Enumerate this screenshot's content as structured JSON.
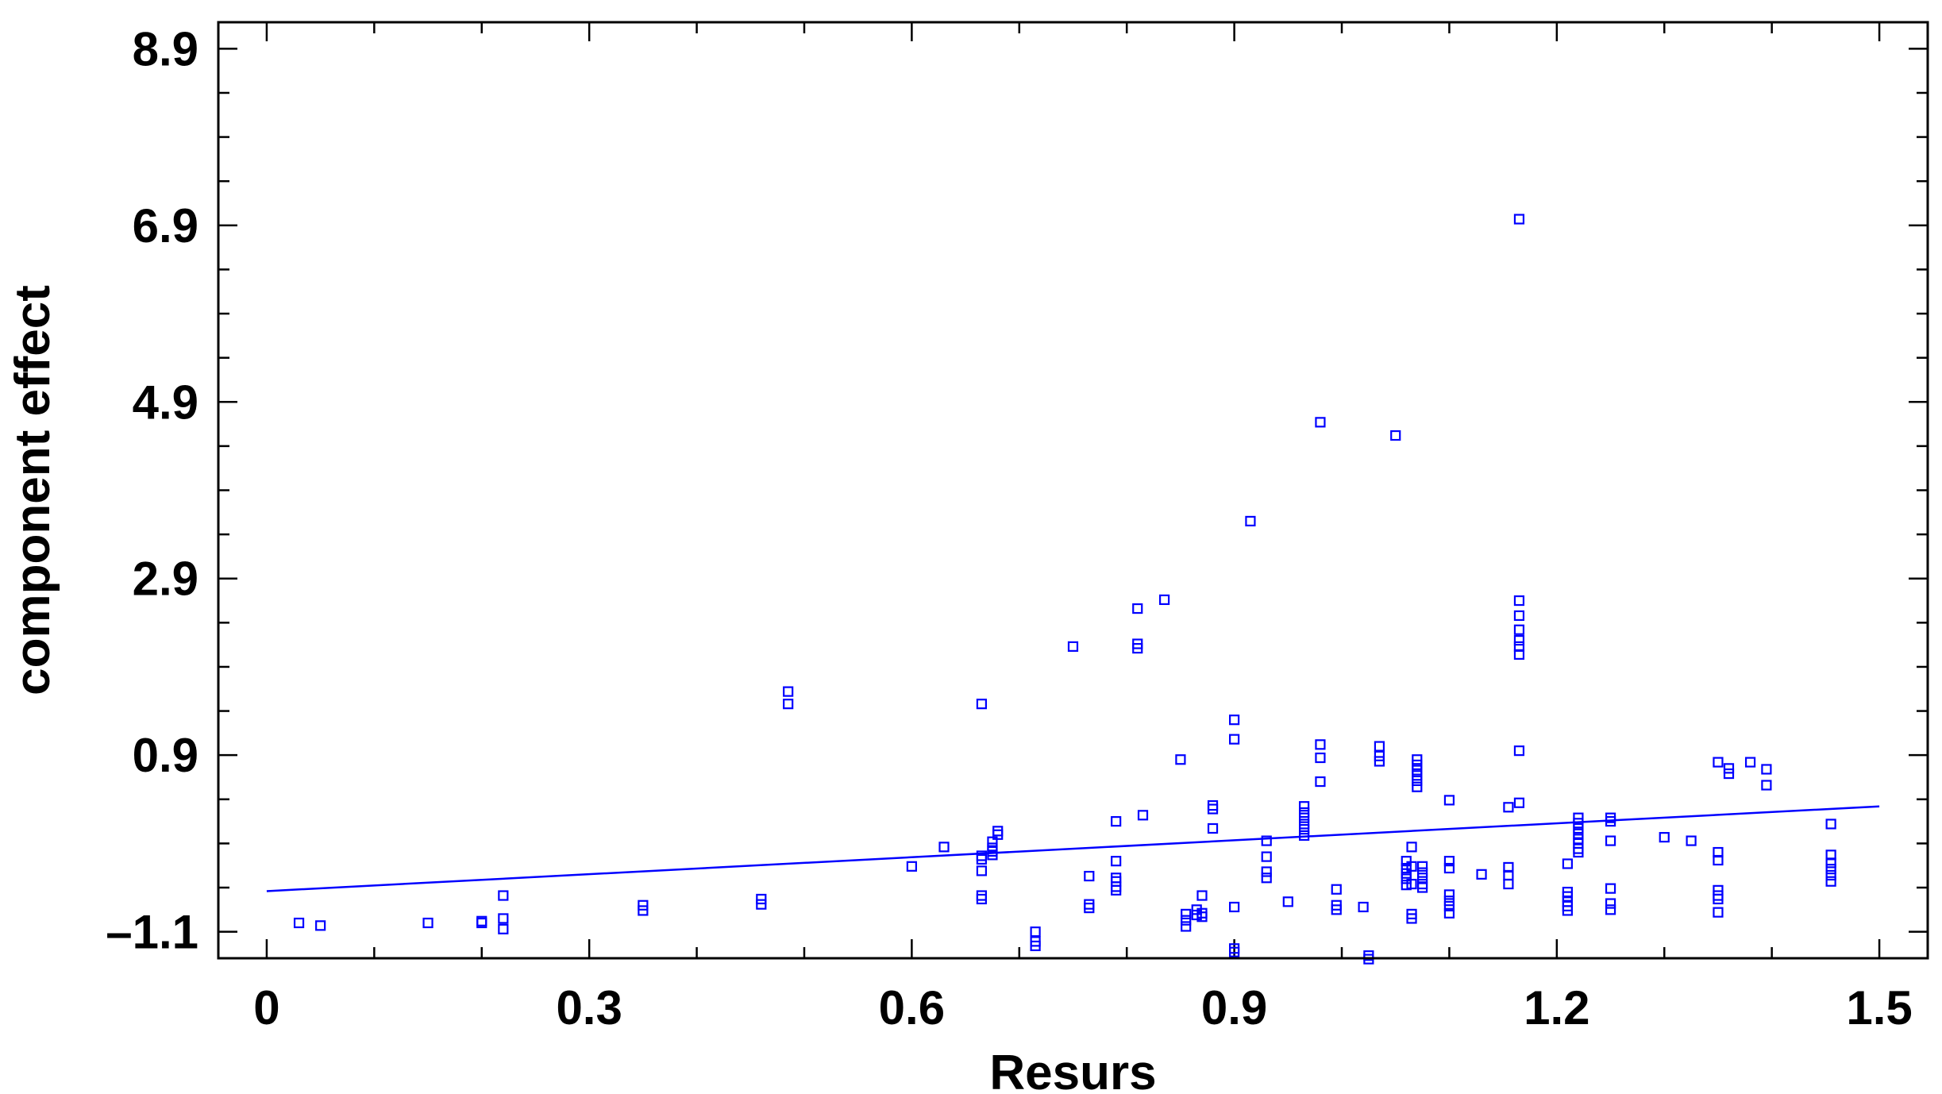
{
  "chart_data": {
    "type": "scatter",
    "title": "",
    "xlabel": "Resurs",
    "ylabel": "component effect",
    "xlim": [
      -0.045,
      1.545
    ],
    "ylim": [
      -1.4,
      9.2
    ],
    "x_ticks": [
      0,
      0.3,
      0.6,
      0.9,
      1.2,
      1.5
    ],
    "x_tick_labels": [
      "0",
      "0.3",
      "0.6",
      "0.9",
      "1.2",
      "1.5"
    ],
    "y_ticks": [
      -1.1,
      0.9,
      2.9,
      4.9,
      6.9,
      8.9
    ],
    "y_tick_labels": [
      "–1.1",
      "0.9",
      "2.9",
      "4.9",
      "6.9",
      "8.9"
    ],
    "x_minor_step": 0.1,
    "y_minor_step": 0.5,
    "grid": false,
    "legend": "none",
    "colors": {
      "points": "#0000ff",
      "fit_line": "#0000ff",
      "axes": "#000000"
    },
    "fit_line": {
      "x": [
        0,
        1.5
      ],
      "y": [
        -0.64,
        0.32
      ]
    },
    "points": [
      {
        "x": 0.03,
        "y": -1.0
      },
      {
        "x": 0.05,
        "y": -1.03
      },
      {
        "x": 0.15,
        "y": -1.0
      },
      {
        "x": 0.2,
        "y": -0.98
      },
      {
        "x": 0.2,
        "y": -1.0
      },
      {
        "x": 0.22,
        "y": -0.69
      },
      {
        "x": 0.22,
        "y": -0.95
      },
      {
        "x": 0.22,
        "y": -1.07
      },
      {
        "x": 0.35,
        "y": -0.8
      },
      {
        "x": 0.35,
        "y": -0.86
      },
      {
        "x": 0.46,
        "y": -0.73
      },
      {
        "x": 0.46,
        "y": -0.79
      },
      {
        "x": 0.485,
        "y": 1.62
      },
      {
        "x": 0.485,
        "y": 1.48
      },
      {
        "x": 0.6,
        "y": -0.36
      },
      {
        "x": 0.63,
        "y": -0.14
      },
      {
        "x": 0.665,
        "y": 1.48
      },
      {
        "x": 0.665,
        "y": -0.24
      },
      {
        "x": 0.665,
        "y": -0.28
      },
      {
        "x": 0.665,
        "y": -0.41
      },
      {
        "x": 0.665,
        "y": -0.69
      },
      {
        "x": 0.665,
        "y": -0.73
      },
      {
        "x": 0.675,
        "y": -0.08
      },
      {
        "x": 0.675,
        "y": -0.15
      },
      {
        "x": 0.675,
        "y": -0.19
      },
      {
        "x": 0.675,
        "y": -0.23
      },
      {
        "x": 0.68,
        "y": 0.0
      },
      {
        "x": 0.68,
        "y": 0.04
      },
      {
        "x": 0.715,
        "y": -1.1
      },
      {
        "x": 0.715,
        "y": -1.21
      },
      {
        "x": 0.715,
        "y": -1.26
      },
      {
        "x": 0.75,
        "y": 2.13
      },
      {
        "x": 0.765,
        "y": -0.47
      },
      {
        "x": 0.765,
        "y": -0.79
      },
      {
        "x": 0.765,
        "y": -0.83
      },
      {
        "x": 0.79,
        "y": 0.15
      },
      {
        "x": 0.79,
        "y": -0.3
      },
      {
        "x": 0.79,
        "y": -0.49
      },
      {
        "x": 0.79,
        "y": -0.53
      },
      {
        "x": 0.79,
        "y": -0.59
      },
      {
        "x": 0.79,
        "y": -0.63
      },
      {
        "x": 0.81,
        "y": 2.56
      },
      {
        "x": 0.81,
        "y": 2.16
      },
      {
        "x": 0.81,
        "y": 2.11
      },
      {
        "x": 0.815,
        "y": 0.22
      },
      {
        "x": 0.835,
        "y": 2.66
      },
      {
        "x": 0.85,
        "y": 0.85
      },
      {
        "x": 0.855,
        "y": -0.9
      },
      {
        "x": 0.855,
        "y": -0.97
      },
      {
        "x": 0.855,
        "y": -1.04
      },
      {
        "x": 0.865,
        "y": -0.85
      },
      {
        "x": 0.865,
        "y": -0.91
      },
      {
        "x": 0.87,
        "y": -0.69
      },
      {
        "x": 0.87,
        "y": -0.89
      },
      {
        "x": 0.87,
        "y": -0.93
      },
      {
        "x": 0.88,
        "y": 0.33
      },
      {
        "x": 0.88,
        "y": 0.29
      },
      {
        "x": 0.88,
        "y": 0.07
      },
      {
        "x": 0.9,
        "y": 1.3
      },
      {
        "x": 0.9,
        "y": 1.08
      },
      {
        "x": 0.9,
        "y": -0.82
      },
      {
        "x": 0.9,
        "y": -1.29
      },
      {
        "x": 0.9,
        "y": -1.33
      },
      {
        "x": 0.915,
        "y": 3.55
      },
      {
        "x": 0.93,
        "y": -0.07
      },
      {
        "x": 0.93,
        "y": -0.25
      },
      {
        "x": 0.93,
        "y": -0.42
      },
      {
        "x": 0.93,
        "y": -0.49
      },
      {
        "x": 0.95,
        "y": -0.76
      },
      {
        "x": 0.965,
        "y": 0.32
      },
      {
        "x": 0.965,
        "y": 0.25
      },
      {
        "x": 0.965,
        "y": 0.19
      },
      {
        "x": 0.965,
        "y": 0.12
      },
      {
        "x": 0.965,
        "y": 0.06
      },
      {
        "x": 0.965,
        "y": -0.01
      },
      {
        "x": 0.98,
        "y": 4.67
      },
      {
        "x": 0.98,
        "y": 1.02
      },
      {
        "x": 0.98,
        "y": 0.87
      },
      {
        "x": 0.98,
        "y": 0.6
      },
      {
        "x": 0.995,
        "y": -0.62
      },
      {
        "x": 0.995,
        "y": -0.8
      },
      {
        "x": 0.995,
        "y": -0.85
      },
      {
        "x": 1.02,
        "y": -0.82
      },
      {
        "x": 1.025,
        "y": -1.37
      },
      {
        "x": 1.025,
        "y": -1.41
      },
      {
        "x": 1.035,
        "y": 1.0
      },
      {
        "x": 1.035,
        "y": 0.89
      },
      {
        "x": 1.035,
        "y": 0.83
      },
      {
        "x": 1.05,
        "y": 4.52
      },
      {
        "x": 1.06,
        "y": -0.3
      },
      {
        "x": 1.06,
        "y": -0.38
      },
      {
        "x": 1.06,
        "y": -0.44
      },
      {
        "x": 1.06,
        "y": -0.5
      },
      {
        "x": 1.06,
        "y": -0.57
      },
      {
        "x": 1.065,
        "y": -0.14
      },
      {
        "x": 1.065,
        "y": -0.36
      },
      {
        "x": 1.065,
        "y": -0.56
      },
      {
        "x": 1.065,
        "y": -0.9
      },
      {
        "x": 1.065,
        "y": -0.95
      },
      {
        "x": 1.07,
        "y": 0.85
      },
      {
        "x": 1.07,
        "y": 0.79
      },
      {
        "x": 1.07,
        "y": 0.73
      },
      {
        "x": 1.07,
        "y": 0.67
      },
      {
        "x": 1.07,
        "y": 0.61
      },
      {
        "x": 1.07,
        "y": 0.54
      },
      {
        "x": 1.075,
        "y": -0.36
      },
      {
        "x": 1.075,
        "y": -0.43
      },
      {
        "x": 1.075,
        "y": -0.49
      },
      {
        "x": 1.075,
        "y": -0.56
      },
      {
        "x": 1.075,
        "y": -0.6
      },
      {
        "x": 1.1,
        "y": 0.39
      },
      {
        "x": 1.1,
        "y": -0.3
      },
      {
        "x": 1.1,
        "y": -0.38
      },
      {
        "x": 1.1,
        "y": -0.68
      },
      {
        "x": 1.1,
        "y": -0.75
      },
      {
        "x": 1.1,
        "y": -0.81
      },
      {
        "x": 1.1,
        "y": -0.89
      },
      {
        "x": 1.13,
        "y": -0.45
      },
      {
        "x": 1.155,
        "y": 0.31
      },
      {
        "x": 1.155,
        "y": -0.37
      },
      {
        "x": 1.155,
        "y": -0.46
      },
      {
        "x": 1.155,
        "y": -0.56
      },
      {
        "x": 1.165,
        "y": 6.97
      },
      {
        "x": 1.165,
        "y": 2.65
      },
      {
        "x": 1.165,
        "y": 2.48
      },
      {
        "x": 1.165,
        "y": 2.32
      },
      {
        "x": 1.165,
        "y": 2.2
      },
      {
        "x": 1.165,
        "y": 2.13
      },
      {
        "x": 1.165,
        "y": 2.04
      },
      {
        "x": 1.165,
        "y": 0.95
      },
      {
        "x": 1.165,
        "y": 0.36
      },
      {
        "x": 1.21,
        "y": -0.33
      },
      {
        "x": 1.21,
        "y": -0.65
      },
      {
        "x": 1.21,
        "y": -0.7
      },
      {
        "x": 1.21,
        "y": -0.76
      },
      {
        "x": 1.21,
        "y": -0.81
      },
      {
        "x": 1.21,
        "y": -0.86
      },
      {
        "x": 1.22,
        "y": 0.19
      },
      {
        "x": 1.22,
        "y": 0.13
      },
      {
        "x": 1.22,
        "y": 0.07
      },
      {
        "x": 1.22,
        "y": 0.01
      },
      {
        "x": 1.22,
        "y": -0.05
      },
      {
        "x": 1.22,
        "y": -0.1
      },
      {
        "x": 1.22,
        "y": -0.16
      },
      {
        "x": 1.22,
        "y": -0.2
      },
      {
        "x": 1.25,
        "y": 0.19
      },
      {
        "x": 1.25,
        "y": 0.15
      },
      {
        "x": 1.25,
        "y": -0.07
      },
      {
        "x": 1.25,
        "y": -0.61
      },
      {
        "x": 1.25,
        "y": -0.78
      },
      {
        "x": 1.25,
        "y": -0.85
      },
      {
        "x": 1.3,
        "y": -0.03
      },
      {
        "x": 1.325,
        "y": -0.07
      },
      {
        "x": 1.35,
        "y": 0.82
      },
      {
        "x": 1.35,
        "y": -0.2
      },
      {
        "x": 1.35,
        "y": -0.29
      },
      {
        "x": 1.35,
        "y": -0.63
      },
      {
        "x": 1.35,
        "y": -0.69
      },
      {
        "x": 1.35,
        "y": -0.73
      },
      {
        "x": 1.35,
        "y": -0.88
      },
      {
        "x": 1.36,
        "y": 0.75
      },
      {
        "x": 1.36,
        "y": 0.69
      },
      {
        "x": 1.38,
        "y": 0.82
      },
      {
        "x": 1.395,
        "y": 0.74
      },
      {
        "x": 1.395,
        "y": 0.56
      },
      {
        "x": 1.455,
        "y": 0.12
      },
      {
        "x": 1.455,
        "y": -0.23
      },
      {
        "x": 1.455,
        "y": -0.32
      },
      {
        "x": 1.455,
        "y": -0.39
      },
      {
        "x": 1.455,
        "y": -0.46
      },
      {
        "x": 1.455,
        "y": -0.53
      }
    ]
  }
}
